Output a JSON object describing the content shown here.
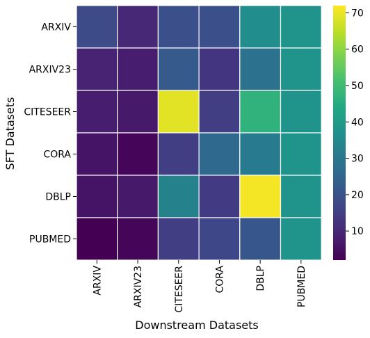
{
  "chart_data": {
    "type": "heatmap",
    "title": "",
    "xlabel": "Downstream Datasets",
    "ylabel": "SFT Datasets",
    "columns": [
      "ARXIV",
      "ARXIV23",
      "CITESEER",
      "CORA",
      "DBLP",
      "PUBMED"
    ],
    "rows": [
      "ARXIV",
      "ARXIV23",
      "CITESEER",
      "CORA",
      "DBLP",
      "PUBMED"
    ],
    "values": [
      [
        18,
        10,
        19,
        19,
        36,
        38
      ],
      [
        9,
        8,
        22,
        13,
        28,
        38
      ],
      [
        8,
        7,
        69,
        15,
        47,
        38
      ],
      [
        6,
        3,
        15,
        26,
        31,
        38
      ],
      [
        6,
        7,
        33,
        14,
        71,
        38
      ],
      [
        2,
        3,
        15,
        17,
        21,
        38
      ]
    ],
    "colorbar": {
      "min": 2,
      "max": 72,
      "ticks": [
        10,
        20,
        30,
        40,
        50,
        60,
        70
      ],
      "colormap": "viridis"
    },
    "cell_border_color": "#ffffff"
  }
}
